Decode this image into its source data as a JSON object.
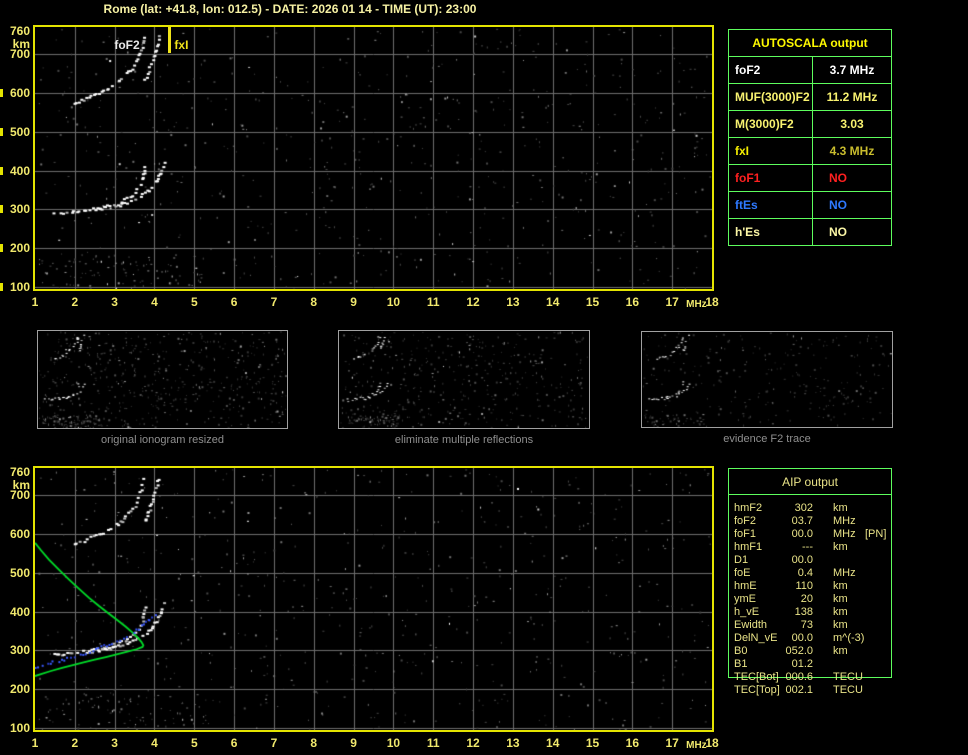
{
  "title": "Rome (lat: +41.8, lon: 012.5) - DATE: 2026 01 14 - TIME (UT): 23:00",
  "colors": {
    "background": "#000000",
    "title_text": "#f6f1a3",
    "axis_labels": "#f1e96d",
    "plot_border": "#e4e400",
    "grid": "#6e6e6e",
    "echo_trace": "#ffffff",
    "profile_green": "#00dc28",
    "restored_trace_blue": "#3b5bff",
    "table_border_green": "#5dfd5d",
    "autoscala_header_yellow": "#fdf900",
    "aip_text": "#e9e388",
    "thumb_caption": "#8f8f8f",
    "fxi_marker": "#f0e41a"
  },
  "autoscala_table": {
    "header": "AUTOSCALA output",
    "rows": [
      {
        "label": "foF2",
        "value": "3.7 MHz",
        "label_color": "#ffffff",
        "value_color": "#ffffff",
        "value_align": "center"
      },
      {
        "label": "MUF(3000)F2",
        "value": "11.2 MHz",
        "label_color": "#f8f270",
        "value_color": "#f8f270",
        "value_align": "center"
      },
      {
        "label": "M(3000)F2",
        "value": "3.03",
        "label_color": "#f8f270",
        "value_color": "#f8f270",
        "value_align": "center"
      },
      {
        "label": "fxI",
        "value": "4.3 MHz",
        "label_color": "#f5ee00",
        "value_color": "#c9bd2e",
        "value_align": "center"
      },
      {
        "label": "foF1",
        "value": "NO",
        "label_color": "#ff2020",
        "value_color": "#ff2020",
        "value_align": "left"
      },
      {
        "label": "ftEs",
        "value": "NO",
        "label_color": "#2e79ff",
        "value_color": "#2e79ff",
        "value_align": "left"
      },
      {
        "label": "h'Es",
        "value": "NO",
        "label_color": "#fbf6a6",
        "value_color": "#fbf6a6",
        "value_align": "left"
      }
    ]
  },
  "aip_table": {
    "header": "AIP output",
    "rows": [
      {
        "label": "hmF2",
        "value": "302",
        "unit": "km",
        "note": ""
      },
      {
        "label": "foF2",
        "value": "03.7",
        "unit": "MHz",
        "note": ""
      },
      {
        "label": "foF1",
        "value": "00.0",
        "unit": "MHz",
        "note": "[PN]"
      },
      {
        "label": "hmF1",
        "value": "---",
        "unit": "km",
        "note": ""
      },
      {
        "label": "D1",
        "value": "00.0",
        "unit": "",
        "note": ""
      },
      {
        "label": "foE",
        "value": "0.4",
        "unit": "MHz",
        "note": ""
      },
      {
        "label": "hmE",
        "value": "110",
        "unit": "km",
        "note": ""
      },
      {
        "label": "ymE",
        "value": "20",
        "unit": "km",
        "note": ""
      },
      {
        "label": "h_vE",
        "value": "138",
        "unit": "km",
        "note": ""
      },
      {
        "label": "Ewidth",
        "value": "73",
        "unit": "km",
        "note": ""
      },
      {
        "label": "DelN_vE",
        "value": "00.0",
        "unit": "m^(-3)",
        "note": ""
      },
      {
        "label": "B0",
        "value": "052.0",
        "unit": "km",
        "note": ""
      },
      {
        "label": "B1",
        "value": "01.2",
        "unit": "",
        "note": ""
      },
      {
        "label": "TEC[Bot]",
        "value": "000.6",
        "unit": "TECU",
        "note": ""
      },
      {
        "label": "TEC[Top]",
        "value": "002.1",
        "unit": "TECU",
        "note": ""
      }
    ]
  },
  "thumbnails": [
    {
      "label": "original ionogram resized",
      "noise_count": 520
    },
    {
      "label": "eliminate multiple reflections",
      "noise_count": 430
    },
    {
      "label": "evidence F2 trace",
      "noise_count": 260
    }
  ],
  "chart_data": [
    {
      "type": "scatter",
      "name": "recorded ionogram",
      "xlabel": "MHz",
      "ylabel": "km",
      "xlim": [
        1,
        18
      ],
      "ylim": [
        95,
        770
      ],
      "x_ticks": [
        "1",
        "2",
        "3",
        "4",
        "5",
        "6",
        "7",
        "8",
        "9",
        "10",
        "11",
        "12",
        "13",
        "14",
        "15",
        "16",
        "17",
        "18"
      ],
      "x_grid": [
        2,
        3,
        4,
        5,
        6,
        7,
        8,
        9,
        10,
        11,
        12,
        13,
        14,
        15,
        16,
        17
      ],
      "y_ticks": [
        {
          "km": 760,
          "label": "760"
        },
        {
          "km": 700,
          "label": "700"
        },
        {
          "km": 600,
          "label": "600"
        },
        {
          "km": 500,
          "label": "500"
        },
        {
          "km": 400,
          "label": "400"
        },
        {
          "km": 300,
          "label": "300"
        },
        {
          "km": 200,
          "label": "200"
        },
        {
          "km": 100,
          "label": "100"
        }
      ],
      "y_grid": [
        100,
        200,
        300,
        400,
        500,
        600,
        700
      ],
      "grid_on": true,
      "annotations": [
        {
          "text": "foF2",
          "x_mhz": 3.42,
          "color": "#e8e8e8",
          "vline": false
        },
        {
          "text": "fxI",
          "x_mhz": 4.35,
          "color": "#f0e41a",
          "vline": true
        }
      ],
      "series": [
        {
          "name": "F2-echo-O-mode",
          "style": "blob",
          "color": "#ffffff",
          "points": [
            [
              1.45,
              291
            ],
            [
              1.7,
              294
            ],
            [
              1.95,
              296
            ],
            [
              2.2,
              299
            ],
            [
              2.45,
              303
            ],
            [
              2.7,
              308
            ],
            [
              2.9,
              314
            ],
            [
              3.1,
              321
            ],
            [
              3.25,
              329
            ],
            [
              3.4,
              339
            ],
            [
              3.52,
              351
            ],
            [
              3.61,
              364
            ],
            [
              3.67,
              379
            ],
            [
              3.71,
              396
            ],
            [
              3.74,
              414
            ],
            [
              3.75,
              427
            ]
          ]
        },
        {
          "name": "F2-echo-X-mode",
          "style": "blob",
          "color": "#ffffff",
          "points": [
            [
              2.35,
              299
            ],
            [
              2.6,
              303
            ],
            [
              2.85,
              308
            ],
            [
              3.1,
              314
            ],
            [
              3.3,
              320
            ],
            [
              3.5,
              329
            ],
            [
              3.68,
              340
            ],
            [
              3.83,
              352
            ],
            [
              3.95,
              366
            ],
            [
              4.05,
              381
            ],
            [
              4.13,
              397
            ],
            [
              4.2,
              415
            ],
            [
              4.24,
              430
            ]
          ]
        },
        {
          "name": "F2-second-hop-O",
          "style": "blob",
          "color": "#ffffff",
          "points": [
            [
              1.95,
              577
            ],
            [
              2.2,
              585
            ],
            [
              2.45,
              594
            ],
            [
              2.7,
              606
            ],
            [
              2.95,
              621
            ],
            [
              3.15,
              637
            ],
            [
              3.33,
              655
            ],
            [
              3.48,
              675
            ],
            [
              3.58,
              697
            ],
            [
              3.66,
              722
            ],
            [
              3.71,
              750
            ]
          ]
        },
        {
          "name": "F2-second-hop-X",
          "style": "blob",
          "color": "#ffffff",
          "points": [
            [
              3.74,
              638
            ],
            [
              3.83,
              660
            ],
            [
              3.92,
              686
            ],
            [
              4.01,
              714
            ],
            [
              4.08,
              743
            ],
            [
              4.12,
              758
            ]
          ]
        }
      ],
      "noise": [
        {
          "count": 640,
          "x": [
            1.05,
            17.95
          ],
          "km": [
            96,
            768
          ]
        },
        {
          "count": 85,
          "x": [
            1.1,
            5.3
          ],
          "km": [
            98,
            190
          ]
        }
      ]
    },
    {
      "type": "scatter",
      "name": "interpreted ionogram with restored trace and electron density profile",
      "xlabel": "MHz",
      "ylabel": "km",
      "xlim": [
        1,
        18
      ],
      "ylim": [
        95,
        770
      ],
      "x_ticks": [
        "1",
        "2",
        "3",
        "4",
        "5",
        "6",
        "7",
        "8",
        "9",
        "10",
        "11",
        "12",
        "13",
        "14",
        "15",
        "16",
        "17",
        "18"
      ],
      "x_grid": [
        2,
        3,
        4,
        5,
        6,
        7,
        8,
        9,
        10,
        11,
        12,
        13,
        14,
        15,
        16,
        17
      ],
      "y_ticks": [
        {
          "km": 760,
          "label": "760"
        },
        {
          "km": 700,
          "label": "700"
        },
        {
          "km": 600,
          "label": "600"
        },
        {
          "km": 500,
          "label": "500"
        },
        {
          "km": 400,
          "label": "400"
        },
        {
          "km": 300,
          "label": "300"
        },
        {
          "km": 200,
          "label": "200"
        },
        {
          "km": 100,
          "label": "100"
        }
      ],
      "y_grid": [
        100,
        200,
        300,
        400,
        500,
        600,
        700
      ],
      "grid_on": true,
      "echo_series_from_chart": 0,
      "annotations": [],
      "series": [
        {
          "name": "electron-density-profile",
          "style": "line",
          "color": "#00dc28",
          "points": [
            [
              1.0,
              577
            ],
            [
              1.15,
              558
            ],
            [
              1.35,
              534
            ],
            [
              1.6,
              508
            ],
            [
              1.85,
              483
            ],
            [
              2.1,
              459
            ],
            [
              2.35,
              436
            ],
            [
              2.6,
              415
            ],
            [
              2.85,
              395
            ],
            [
              3.08,
              377
            ],
            [
              3.28,
              361
            ],
            [
              3.45,
              346
            ],
            [
              3.58,
              333
            ],
            [
              3.67,
              322
            ],
            [
              3.72,
              313
            ],
            [
              3.7,
              309
            ],
            [
              3.55,
              303
            ],
            [
              3.32,
              297
            ],
            [
              3.05,
              290
            ],
            [
              2.78,
              283
            ],
            [
              2.5,
              276
            ],
            [
              2.22,
              269
            ],
            [
              1.95,
              262
            ],
            [
              1.68,
              255
            ],
            [
              1.4,
              247
            ],
            [
              1.15,
              239
            ],
            [
              1.0,
              234
            ]
          ]
        },
        {
          "name": "restored-F2-trace",
          "style": "dots",
          "color": "#3b5bff",
          "points": [
            [
              1.0,
              261
            ],
            [
              1.15,
              264
            ],
            [
              1.3,
              268
            ],
            [
              1.5,
              273
            ],
            [
              1.7,
              279
            ],
            [
              1.9,
              285
            ],
            [
              2.1,
              291
            ],
            [
              2.3,
              298
            ],
            [
              2.5,
              305
            ],
            [
              2.7,
              313
            ],
            [
              2.9,
              321
            ],
            [
              3.1,
              330
            ],
            [
              3.28,
              339
            ],
            [
              3.45,
              349
            ],
            [
              3.6,
              359
            ],
            [
              3.72,
              369
            ],
            [
              3.82,
              379
            ],
            [
              3.91,
              388
            ],
            [
              3.99,
              397
            ],
            [
              4.04,
              403
            ]
          ]
        }
      ],
      "noise": [
        {
          "count": 600,
          "x": [
            1.05,
            17.95
          ],
          "km": [
            96,
            768
          ]
        },
        {
          "count": 80,
          "x": [
            1.1,
            5.3
          ],
          "km": [
            98,
            190
          ]
        }
      ]
    }
  ]
}
